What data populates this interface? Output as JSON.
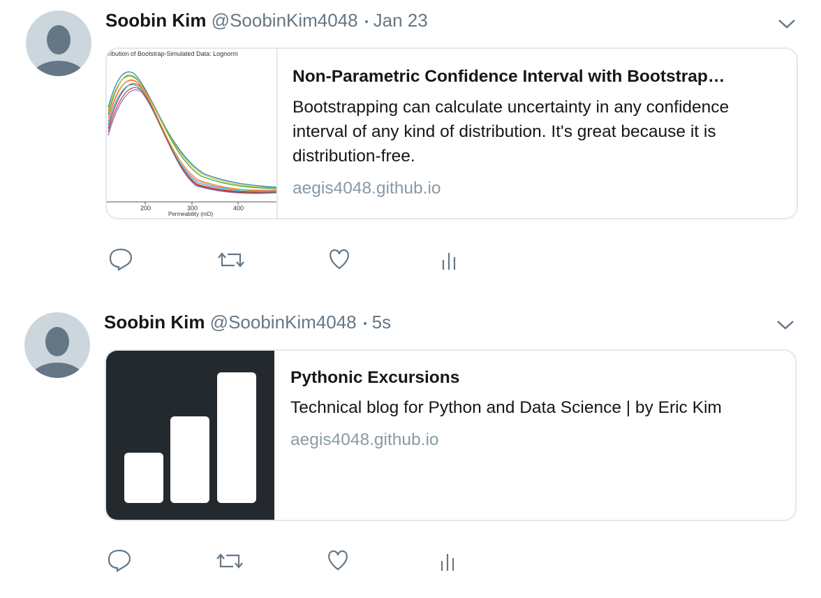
{
  "tweets": [
    {
      "name": "Soobin Kim",
      "handle": "@SoobinKim4048",
      "time": "Jan 23",
      "card": {
        "title": "Non-Parametric Confidence Interval with Bootstrap…",
        "description": "Bootstrapping can calculate uncertainty in any confidence interval of any kind of distribution. It's great because it is distribution-free.",
        "domain": "aegis4048.github.io",
        "thumbnail": {
          "title": "ribution of Bootstrap-Simulated Data: Lognorm",
          "ticks": [
            "200",
            "300",
            "400"
          ],
          "xlabel": "Permeability (mD)"
        }
      }
    },
    {
      "name": "Soobin Kim",
      "handle": "@SoobinKim4048",
      "time": "5s",
      "card": {
        "title": "Pythonic Excursions",
        "description": "Technical blog for Python and Data Science | by Eric Kim",
        "domain": "aegis4048.github.io"
      }
    }
  ]
}
